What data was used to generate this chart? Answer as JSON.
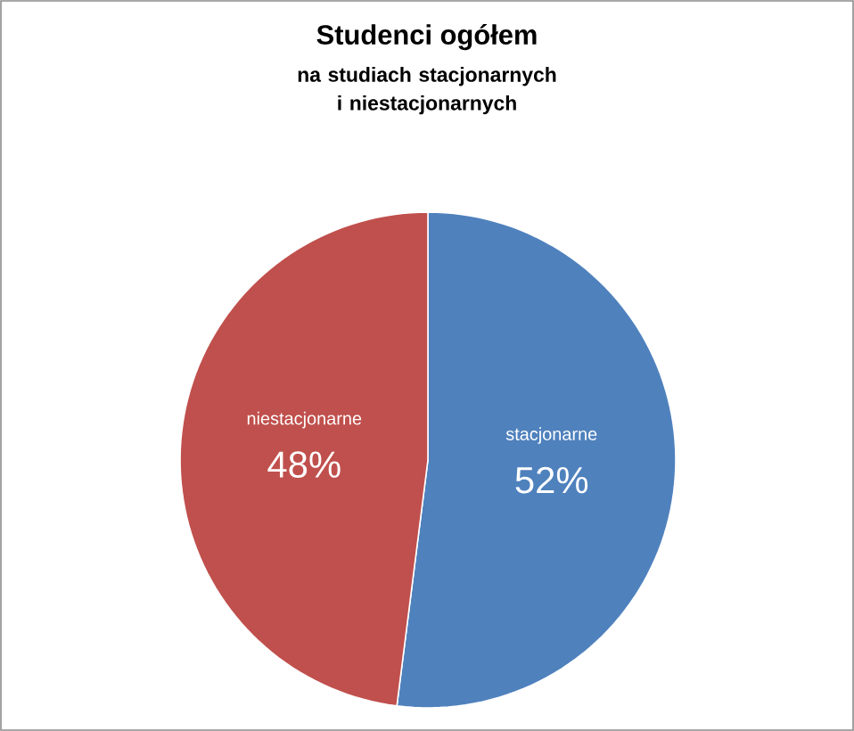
{
  "chart_data": {
    "type": "pie",
    "title": "Studenci ogółem",
    "subtitle": "na studiach stacjonarnych i niestacjonarnych",
    "categories": [
      "stacjonarne",
      "niestacjonarne"
    ],
    "values": [
      52,
      48
    ],
    "colors": [
      "#4f81bd",
      "#c0504d"
    ],
    "value_labels": [
      "52%",
      "48%"
    ]
  }
}
